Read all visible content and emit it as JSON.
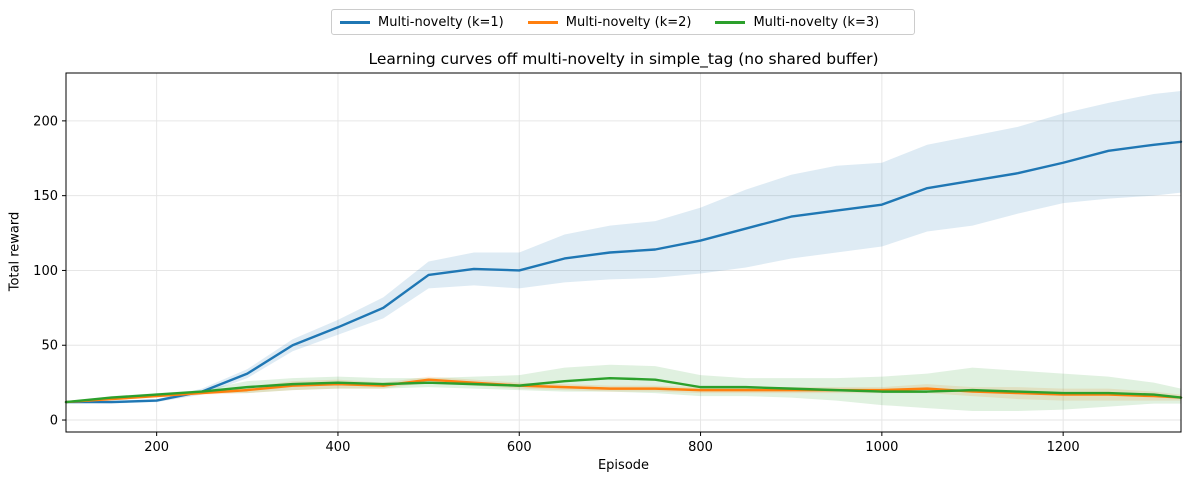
{
  "chart_data": {
    "type": "line",
    "title": "Learning curves off multi-novelty in simple_tag (no shared buffer)",
    "xlabel": "Episode",
    "ylabel": "Total reward",
    "xlim": [
      100,
      1330
    ],
    "ylim": [
      -8,
      232
    ],
    "xticks": [
      200,
      400,
      600,
      800,
      1000,
      1200
    ],
    "yticks": [
      0,
      50,
      100,
      150,
      200
    ],
    "grid": true,
    "legend_position": "top-center",
    "series": [
      {
        "name": "Multi-novelty (k=1)",
        "color": "#1f77b4",
        "x": [
          100,
          150,
          200,
          250,
          300,
          350,
          400,
          450,
          500,
          550,
          600,
          650,
          700,
          750,
          800,
          850,
          900,
          950,
          1000,
          1050,
          1100,
          1150,
          1200,
          1250,
          1300,
          1330
        ],
        "values": [
          12,
          12,
          13,
          19,
          31,
          50,
          62,
          75,
          97,
          101,
          100,
          108,
          112,
          114,
          120,
          128,
          136,
          140,
          144,
          155,
          160,
          165,
          172,
          180,
          184,
          186
        ],
        "lower": [
          12,
          11,
          12,
          17,
          28,
          46,
          57,
          68,
          88,
          90,
          88,
          92,
          94,
          95,
          98,
          102,
          108,
          112,
          116,
          126,
          130,
          138,
          145,
          148,
          150,
          152
        ],
        "upper": [
          12,
          13,
          14,
          21,
          34,
          54,
          67,
          82,
          106,
          112,
          112,
          124,
          130,
          133,
          142,
          154,
          164,
          170,
          172,
          184,
          190,
          196,
          205,
          212,
          218,
          220
        ]
      },
      {
        "name": "Multi-novelty (k=2)",
        "color": "#ff7f0e",
        "x": [
          100,
          150,
          200,
          250,
          300,
          350,
          400,
          450,
          500,
          550,
          600,
          650,
          700,
          750,
          800,
          850,
          900,
          950,
          1000,
          1050,
          1100,
          1150,
          1200,
          1250,
          1300,
          1330
        ],
        "values": [
          12,
          14,
          16,
          18,
          20,
          23,
          24,
          23,
          27,
          25,
          23,
          22,
          21,
          21,
          20,
          20,
          20,
          20,
          20,
          21,
          19,
          18,
          17,
          17,
          16,
          15
        ],
        "lower": [
          12,
          13,
          15,
          17,
          18,
          20,
          21,
          21,
          25,
          23,
          21,
          20,
          19,
          19,
          18,
          18,
          18,
          18,
          18,
          18,
          16,
          14,
          13,
          13,
          13,
          13
        ],
        "upper": [
          12,
          15,
          17,
          19,
          22,
          26,
          27,
          25,
          29,
          27,
          25,
          24,
          23,
          23,
          22,
          22,
          22,
          22,
          22,
          24,
          22,
          22,
          21,
          21,
          19,
          17
        ]
      },
      {
        "name": "Multi-novelty (k=3)",
        "color": "#2ca02c",
        "x": [
          100,
          150,
          200,
          250,
          300,
          350,
          400,
          450,
          500,
          550,
          600,
          650,
          700,
          750,
          800,
          850,
          900,
          950,
          1000,
          1050,
          1100,
          1150,
          1200,
          1250,
          1300,
          1330
        ],
        "values": [
          12,
          15,
          17,
          19,
          22,
          24,
          25,
          24,
          25,
          24,
          23,
          26,
          28,
          27,
          22,
          22,
          21,
          20,
          19,
          19,
          20,
          19,
          18,
          18,
          17,
          15
        ],
        "lower": [
          12,
          14,
          16,
          18,
          18,
          20,
          21,
          21,
          22,
          21,
          20,
          19,
          19,
          18,
          16,
          16,
          15,
          13,
          10,
          8,
          6,
          6,
          7,
          9,
          11,
          11
        ],
        "upper": [
          12,
          16,
          18,
          20,
          26,
          28,
          29,
          28,
          28,
          29,
          30,
          35,
          37,
          36,
          30,
          28,
          28,
          28,
          29,
          31,
          35,
          33,
          31,
          29,
          25,
          21
        ]
      }
    ]
  }
}
